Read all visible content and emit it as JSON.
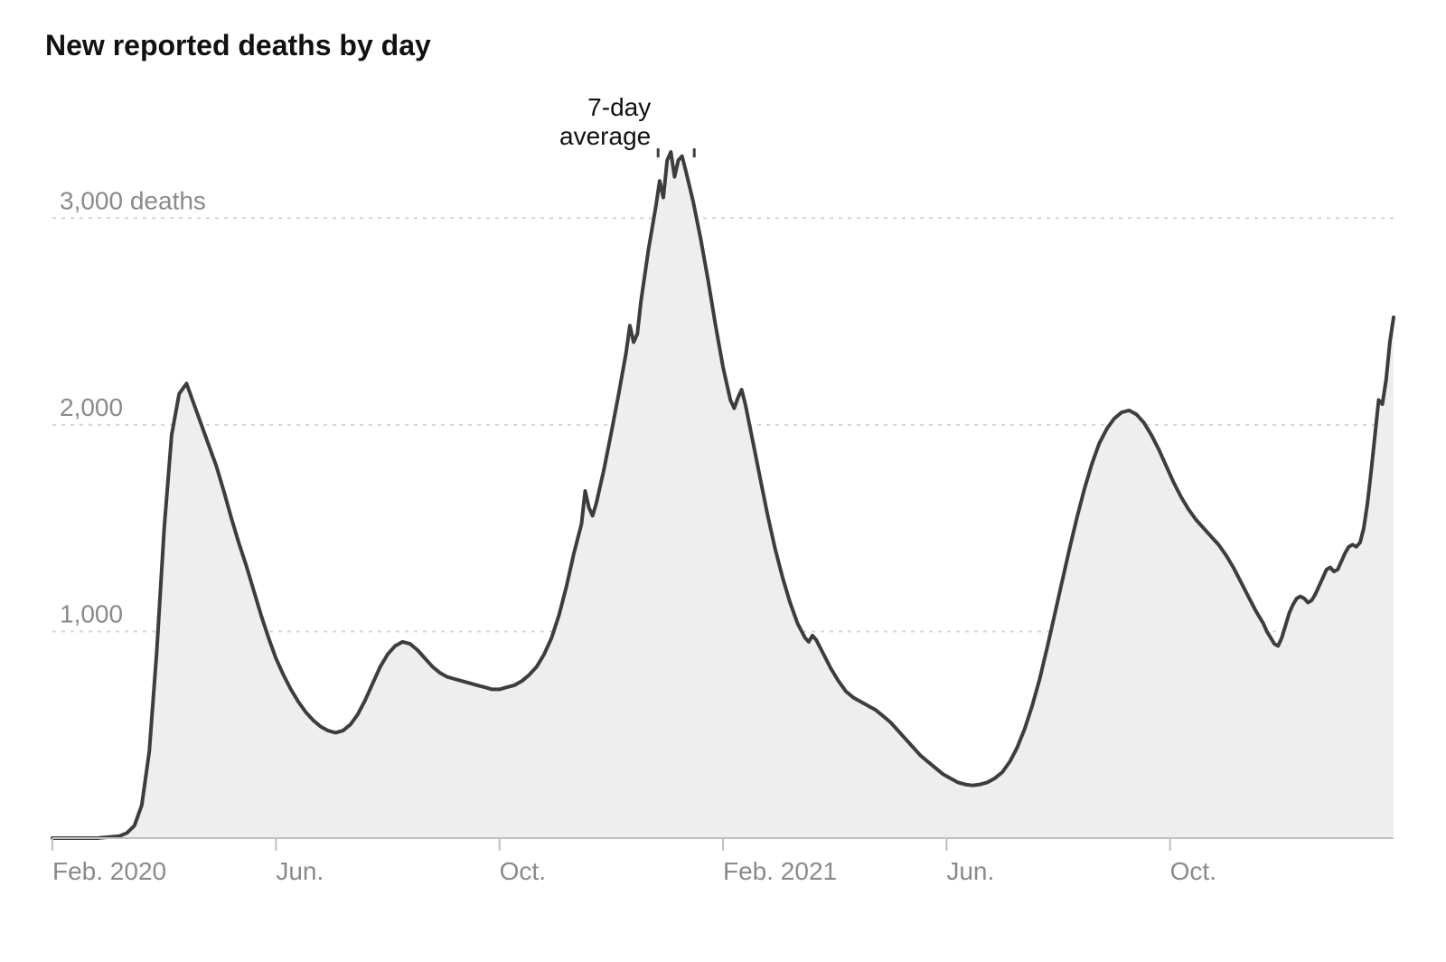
{
  "chart": {
    "type": "area",
    "title": "New reported deaths by day",
    "title_fontsize": 32,
    "title_fontweight": 700,
    "title_color": "#111111",
    "background_color": "#ffffff",
    "area_fill": "#eeeeee",
    "line_stroke": "#3d3d3d",
    "line_width": 4,
    "grid_color": "#d6d6d6",
    "grid_dash": "4,6",
    "axis_label_color": "#8a8a8a",
    "axis_label_fontsize": 28,
    "xaxis_line_color": "#bfbfbf",
    "xaxis_tick_color": "#bfbfbf",
    "ylim": [
      0,
      3500
    ],
    "yticks": [
      {
        "value": 1000,
        "label": "1,000"
      },
      {
        "value": 2000,
        "label": "2,000"
      },
      {
        "value": 3000,
        "label": "3,000 deaths"
      }
    ],
    "x_range_days": [
      0,
      720
    ],
    "xticks": [
      {
        "t": 0,
        "label": "Feb. 2020"
      },
      {
        "t": 120,
        "label": "Jun."
      },
      {
        "t": 240,
        "label": "Oct."
      },
      {
        "t": 360,
        "label": "Feb. 2021"
      },
      {
        "t": 480,
        "label": "Jun."
      },
      {
        "t": 600,
        "label": "Oct."
      }
    ],
    "annotation": {
      "lines": [
        "7-day",
        "average"
      ],
      "at_t": 331,
      "at_v": 3320,
      "fontsize": 28,
      "color": "#111111",
      "tick_stroke": "#3d3d3d"
    },
    "series": [
      {
        "t": 0,
        "v": 0
      },
      {
        "t": 6,
        "v": 0
      },
      {
        "t": 12,
        "v": 0
      },
      {
        "t": 18,
        "v": 0
      },
      {
        "t": 24,
        "v": 0
      },
      {
        "t": 30,
        "v": 5
      },
      {
        "t": 36,
        "v": 10
      },
      {
        "t": 40,
        "v": 25
      },
      {
        "t": 44,
        "v": 60
      },
      {
        "t": 48,
        "v": 160
      },
      {
        "t": 52,
        "v": 420
      },
      {
        "t": 56,
        "v": 900
      },
      {
        "t": 60,
        "v": 1500
      },
      {
        "t": 64,
        "v": 1950
      },
      {
        "t": 68,
        "v": 2150
      },
      {
        "t": 72,
        "v": 2200
      },
      {
        "t": 76,
        "v": 2100
      },
      {
        "t": 80,
        "v": 2000
      },
      {
        "t": 84,
        "v": 1900
      },
      {
        "t": 88,
        "v": 1800
      },
      {
        "t": 92,
        "v": 1680
      },
      {
        "t": 96,
        "v": 1550
      },
      {
        "t": 100,
        "v": 1430
      },
      {
        "t": 104,
        "v": 1320
      },
      {
        "t": 108,
        "v": 1200
      },
      {
        "t": 112,
        "v": 1080
      },
      {
        "t": 116,
        "v": 970
      },
      {
        "t": 120,
        "v": 870
      },
      {
        "t": 124,
        "v": 790
      },
      {
        "t": 128,
        "v": 720
      },
      {
        "t": 132,
        "v": 660
      },
      {
        "t": 136,
        "v": 610
      },
      {
        "t": 140,
        "v": 570
      },
      {
        "t": 144,
        "v": 540
      },
      {
        "t": 148,
        "v": 520
      },
      {
        "t": 152,
        "v": 510
      },
      {
        "t": 156,
        "v": 520
      },
      {
        "t": 160,
        "v": 550
      },
      {
        "t": 164,
        "v": 600
      },
      {
        "t": 168,
        "v": 670
      },
      {
        "t": 172,
        "v": 750
      },
      {
        "t": 176,
        "v": 830
      },
      {
        "t": 180,
        "v": 890
      },
      {
        "t": 184,
        "v": 930
      },
      {
        "t": 188,
        "v": 950
      },
      {
        "t": 192,
        "v": 940
      },
      {
        "t": 196,
        "v": 910
      },
      {
        "t": 200,
        "v": 870
      },
      {
        "t": 204,
        "v": 830
      },
      {
        "t": 208,
        "v": 800
      },
      {
        "t": 212,
        "v": 780
      },
      {
        "t": 216,
        "v": 770
      },
      {
        "t": 220,
        "v": 760
      },
      {
        "t": 224,
        "v": 750
      },
      {
        "t": 228,
        "v": 740
      },
      {
        "t": 232,
        "v": 730
      },
      {
        "t": 236,
        "v": 720
      },
      {
        "t": 240,
        "v": 720
      },
      {
        "t": 244,
        "v": 730
      },
      {
        "t": 248,
        "v": 740
      },
      {
        "t": 252,
        "v": 760
      },
      {
        "t": 256,
        "v": 790
      },
      {
        "t": 260,
        "v": 830
      },
      {
        "t": 264,
        "v": 890
      },
      {
        "t": 268,
        "v": 970
      },
      {
        "t": 272,
        "v": 1080
      },
      {
        "t": 276,
        "v": 1220
      },
      {
        "t": 280,
        "v": 1380
      },
      {
        "t": 284,
        "v": 1520
      },
      {
        "t": 286,
        "v": 1680
      },
      {
        "t": 288,
        "v": 1600
      },
      {
        "t": 290,
        "v": 1560
      },
      {
        "t": 292,
        "v": 1620
      },
      {
        "t": 296,
        "v": 1780
      },
      {
        "t": 300,
        "v": 1960
      },
      {
        "t": 304,
        "v": 2150
      },
      {
        "t": 308,
        "v": 2350
      },
      {
        "t": 310,
        "v": 2480
      },
      {
        "t": 312,
        "v": 2400
      },
      {
        "t": 314,
        "v": 2440
      },
      {
        "t": 316,
        "v": 2600
      },
      {
        "t": 320,
        "v": 2850
      },
      {
        "t": 324,
        "v": 3060
      },
      {
        "t": 326,
        "v": 3180
      },
      {
        "t": 328,
        "v": 3100
      },
      {
        "t": 330,
        "v": 3280
      },
      {
        "t": 332,
        "v": 3320
      },
      {
        "t": 334,
        "v": 3200
      },
      {
        "t": 336,
        "v": 3280
      },
      {
        "t": 338,
        "v": 3300
      },
      {
        "t": 340,
        "v": 3230
      },
      {
        "t": 344,
        "v": 3080
      },
      {
        "t": 348,
        "v": 2900
      },
      {
        "t": 352,
        "v": 2700
      },
      {
        "t": 356,
        "v": 2480
      },
      {
        "t": 360,
        "v": 2280
      },
      {
        "t": 364,
        "v": 2120
      },
      {
        "t": 366,
        "v": 2080
      },
      {
        "t": 368,
        "v": 2130
      },
      {
        "t": 370,
        "v": 2170
      },
      {
        "t": 372,
        "v": 2100
      },
      {
        "t": 376,
        "v": 1920
      },
      {
        "t": 380,
        "v": 1740
      },
      {
        "t": 384,
        "v": 1560
      },
      {
        "t": 388,
        "v": 1400
      },
      {
        "t": 392,
        "v": 1260
      },
      {
        "t": 396,
        "v": 1140
      },
      {
        "t": 400,
        "v": 1040
      },
      {
        "t": 404,
        "v": 970
      },
      {
        "t": 406,
        "v": 950
      },
      {
        "t": 408,
        "v": 980
      },
      {
        "t": 410,
        "v": 960
      },
      {
        "t": 414,
        "v": 890
      },
      {
        "t": 418,
        "v": 820
      },
      {
        "t": 422,
        "v": 760
      },
      {
        "t": 426,
        "v": 710
      },
      {
        "t": 430,
        "v": 680
      },
      {
        "t": 434,
        "v": 660
      },
      {
        "t": 438,
        "v": 640
      },
      {
        "t": 442,
        "v": 620
      },
      {
        "t": 446,
        "v": 590
      },
      {
        "t": 450,
        "v": 560
      },
      {
        "t": 454,
        "v": 520
      },
      {
        "t": 458,
        "v": 480
      },
      {
        "t": 462,
        "v": 440
      },
      {
        "t": 466,
        "v": 400
      },
      {
        "t": 470,
        "v": 370
      },
      {
        "t": 474,
        "v": 340
      },
      {
        "t": 478,
        "v": 310
      },
      {
        "t": 482,
        "v": 290
      },
      {
        "t": 486,
        "v": 270
      },
      {
        "t": 490,
        "v": 260
      },
      {
        "t": 494,
        "v": 255
      },
      {
        "t": 498,
        "v": 260
      },
      {
        "t": 502,
        "v": 270
      },
      {
        "t": 506,
        "v": 290
      },
      {
        "t": 510,
        "v": 320
      },
      {
        "t": 514,
        "v": 370
      },
      {
        "t": 518,
        "v": 440
      },
      {
        "t": 522,
        "v": 530
      },
      {
        "t": 526,
        "v": 640
      },
      {
        "t": 530,
        "v": 770
      },
      {
        "t": 534,
        "v": 920
      },
      {
        "t": 538,
        "v": 1080
      },
      {
        "t": 542,
        "v": 1240
      },
      {
        "t": 546,
        "v": 1400
      },
      {
        "t": 550,
        "v": 1550
      },
      {
        "t": 554,
        "v": 1690
      },
      {
        "t": 558,
        "v": 1810
      },
      {
        "t": 562,
        "v": 1910
      },
      {
        "t": 566,
        "v": 1980
      },
      {
        "t": 570,
        "v": 2030
      },
      {
        "t": 574,
        "v": 2060
      },
      {
        "t": 578,
        "v": 2070
      },
      {
        "t": 582,
        "v": 2050
      },
      {
        "t": 586,
        "v": 2010
      },
      {
        "t": 590,
        "v": 1950
      },
      {
        "t": 594,
        "v": 1880
      },
      {
        "t": 598,
        "v": 1800
      },
      {
        "t": 602,
        "v": 1720
      },
      {
        "t": 606,
        "v": 1650
      },
      {
        "t": 610,
        "v": 1590
      },
      {
        "t": 614,
        "v": 1540
      },
      {
        "t": 618,
        "v": 1500
      },
      {
        "t": 622,
        "v": 1460
      },
      {
        "t": 626,
        "v": 1420
      },
      {
        "t": 630,
        "v": 1370
      },
      {
        "t": 634,
        "v": 1310
      },
      {
        "t": 638,
        "v": 1240
      },
      {
        "t": 642,
        "v": 1170
      },
      {
        "t": 646,
        "v": 1100
      },
      {
        "t": 650,
        "v": 1040
      },
      {
        "t": 652,
        "v": 1000
      },
      {
        "t": 654,
        "v": 970
      },
      {
        "t": 656,
        "v": 940
      },
      {
        "t": 658,
        "v": 930
      },
      {
        "t": 660,
        "v": 970
      },
      {
        "t": 662,
        "v": 1030
      },
      {
        "t": 664,
        "v": 1090
      },
      {
        "t": 666,
        "v": 1130
      },
      {
        "t": 668,
        "v": 1160
      },
      {
        "t": 670,
        "v": 1170
      },
      {
        "t": 672,
        "v": 1160
      },
      {
        "t": 674,
        "v": 1140
      },
      {
        "t": 676,
        "v": 1150
      },
      {
        "t": 678,
        "v": 1180
      },
      {
        "t": 680,
        "v": 1220
      },
      {
        "t": 682,
        "v": 1260
      },
      {
        "t": 684,
        "v": 1300
      },
      {
        "t": 686,
        "v": 1310
      },
      {
        "t": 688,
        "v": 1290
      },
      {
        "t": 690,
        "v": 1300
      },
      {
        "t": 692,
        "v": 1340
      },
      {
        "t": 694,
        "v": 1380
      },
      {
        "t": 696,
        "v": 1410
      },
      {
        "t": 698,
        "v": 1420
      },
      {
        "t": 700,
        "v": 1410
      },
      {
        "t": 702,
        "v": 1430
      },
      {
        "t": 704,
        "v": 1500
      },
      {
        "t": 706,
        "v": 1620
      },
      {
        "t": 708,
        "v": 1780
      },
      {
        "t": 710,
        "v": 1950
      },
      {
        "t": 712,
        "v": 2120
      },
      {
        "t": 714,
        "v": 2100
      },
      {
        "t": 716,
        "v": 2220
      },
      {
        "t": 718,
        "v": 2400
      },
      {
        "t": 720,
        "v": 2520
      }
    ]
  }
}
